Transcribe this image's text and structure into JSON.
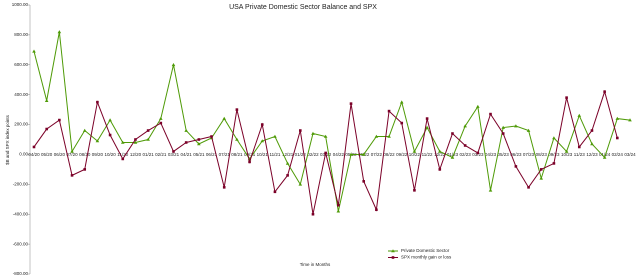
{
  "chart_data": {
    "type": "line",
    "title": "USA Private Domestic Sector Balance and SPX",
    "x_label": "Time in Months",
    "y_label": "$B and SPX index points",
    "categories": [
      "04/20",
      "05/20",
      "06/20",
      "07/20",
      "08/20",
      "09/20",
      "10/20",
      "11/20",
      "12/20",
      "01/21",
      "02/21",
      "03/21",
      "04/21",
      "05/21",
      "06/21",
      "07/21",
      "08/21",
      "09/21",
      "10/21",
      "11/21",
      "12/21",
      "01/22",
      "02/22",
      "03/22",
      "04/22",
      "05/22",
      "06/22",
      "07/22",
      "08/22",
      "09/22",
      "10/22",
      "11/22",
      "12/22",
      "01/23",
      "02/23",
      "03/23",
      "04/23",
      "05/23",
      "06/23",
      "07/23",
      "08/23",
      "09/23",
      "10/23",
      "11/23",
      "12/23",
      "01/24",
      "02/24",
      "03/24"
    ],
    "series": [
      {
        "name": "Private Domestic Sector",
        "color": "#4e9a06",
        "marker": "triangle",
        "values": [
          690,
          360,
          820,
          20,
          160,
          90,
          230,
          80,
          80,
          100,
          240,
          600,
          160,
          70,
          110,
          240,
          100,
          -30,
          90,
          120,
          -60,
          -200,
          140,
          120,
          -380,
          0,
          0,
          120,
          120,
          350,
          20,
          180,
          20,
          -20,
          190,
          320,
          -240,
          180,
          190,
          160,
          -160,
          110,
          20,
          260,
          70,
          -20,
          240,
          230
        ]
      },
      {
        "name": "SPX monthly gain or loss",
        "color": "#7b0028",
        "marker": "square",
        "values": [
          50,
          170,
          230,
          -140,
          -100,
          350,
          130,
          -30,
          100,
          160,
          210,
          20,
          80,
          100,
          120,
          -220,
          300,
          -50,
          200,
          -250,
          -140,
          160,
          -400,
          10,
          -340,
          340,
          -180,
          -370,
          290,
          210,
          -240,
          240,
          -100,
          140,
          60,
          10,
          270,
          140,
          -80,
          -220,
          -100,
          -60,
          380,
          50,
          160,
          420,
          110,
          null
        ]
      }
    ],
    "ylim": [
      -800,
      1000
    ],
    "yticks": [
      {
        "value": -800,
        "label": "-800.00"
      },
      {
        "value": -600,
        "label": "-600.00"
      },
      {
        "value": -400,
        "label": "-400.00"
      },
      {
        "value": -200,
        "label": "-200.00"
      },
      {
        "value": 0,
        "label": "0.00"
      },
      {
        "value": 200,
        "label": "200.00"
      },
      {
        "value": 400,
        "label": "400.00"
      },
      {
        "value": 600,
        "label": "600.00"
      },
      {
        "value": 800,
        "label": "800.00"
      },
      {
        "value": 1000,
        "label": "1000.00"
      }
    ],
    "grid": false,
    "legend": "bottom"
  }
}
